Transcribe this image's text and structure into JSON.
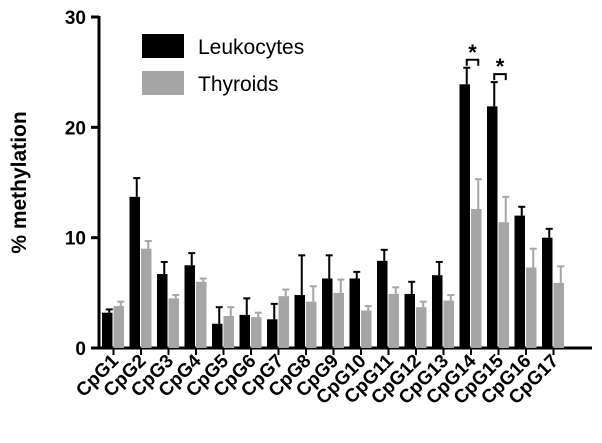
{
  "chart_data": {
    "type": "bar",
    "ylabel": "% methylation",
    "xlabel": "",
    "ylim": [
      0,
      30
    ],
    "yticks": [
      0,
      10,
      20,
      30
    ],
    "legend_position": "top-left",
    "categories": [
      "CpG1",
      "CpG2",
      "CpG3",
      "CpG4",
      "CpG5",
      "CpG6",
      "CpG7",
      "CpG8",
      "CpG9",
      "CpG10",
      "CpG11",
      "CpG12",
      "CpG13",
      "CpG14",
      "CpG15",
      "CpG16",
      "CpG17"
    ],
    "series": [
      {
        "name": "Leukocytes",
        "color": "#000000",
        "values": [
          3.2,
          13.7,
          6.7,
          7.5,
          2.2,
          3.0,
          2.6,
          4.8,
          6.3,
          6.3,
          7.9,
          4.9,
          6.6,
          23.9,
          21.9,
          12.0,
          10.0
        ],
        "errors": [
          0.3,
          1.7,
          1.1,
          1.1,
          1.5,
          1.5,
          1.4,
          3.6,
          2.1,
          0.6,
          1.0,
          1.1,
          1.2,
          1.5,
          2.2,
          0.8,
          0.8
        ]
      },
      {
        "name": "Thyroids",
        "color": "#a6a6a6",
        "values": [
          3.8,
          9.0,
          4.5,
          6.0,
          2.9,
          2.8,
          4.7,
          4.2,
          5.0,
          3.4,
          4.9,
          3.7,
          4.3,
          12.6,
          11.4,
          7.3,
          5.9
        ],
        "errors": [
          0.4,
          0.7,
          0.3,
          0.3,
          0.8,
          0.4,
          0.6,
          1.4,
          1.2,
          0.4,
          0.6,
          0.5,
          0.5,
          2.7,
          2.3,
          1.7,
          1.5
        ]
      }
    ],
    "annotations": [
      {
        "category": "CpG14",
        "text": "*"
      },
      {
        "category": "CpG15",
        "text": "*"
      }
    ]
  }
}
